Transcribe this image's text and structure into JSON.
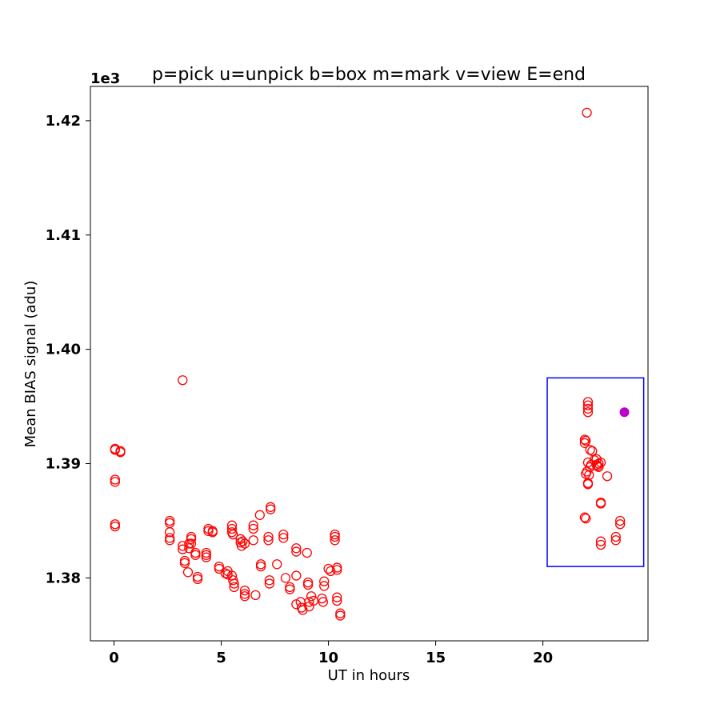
{
  "chart_data": {
    "type": "scatter",
    "title": "p=pick u=unpick b=box m=mark v=view E=end",
    "xlabel": "UT in hours",
    "ylabel": "Mean BIAS signal (adu)",
    "y_offset_label": "1e3",
    "xlim": [
      -1.1,
      24.9
    ],
    "ylim": [
      1.3745,
      1.423
    ],
    "xticks": [
      0,
      5,
      10,
      15,
      20
    ],
    "xtick_labels": [
      "0",
      "5",
      "10",
      "15",
      "20"
    ],
    "yticks": [
      1.38,
      1.39,
      1.4,
      1.41,
      1.42
    ],
    "ytick_labels": [
      "1.38",
      "1.39",
      "1.40",
      "1.41",
      "1.42"
    ],
    "grid": false,
    "legend": "none",
    "colors": {
      "points": "#ff0000",
      "marked": "#bb00cc",
      "box": "#0000ff"
    },
    "series": [
      {
        "marker": "open-circle",
        "color": "#ff0000",
        "points": [
          [
            0.05,
            1.3913
          ],
          [
            0.05,
            1.3912
          ],
          [
            0.3,
            1.3911
          ],
          [
            0.3,
            1.391
          ],
          [
            0.05,
            1.3886
          ],
          [
            0.05,
            1.3884
          ],
          [
            0.05,
            1.3847
          ],
          [
            0.05,
            1.3845
          ],
          [
            3.2,
            1.3973
          ],
          [
            2.6,
            1.385
          ],
          [
            2.6,
            1.3848
          ],
          [
            2.6,
            1.384
          ],
          [
            2.6,
            1.3835
          ],
          [
            2.6,
            1.3833
          ],
          [
            3.2,
            1.3828
          ],
          [
            3.2,
            1.3825
          ],
          [
            3.3,
            1.3815
          ],
          [
            3.3,
            1.3813
          ],
          [
            3.45,
            1.3805
          ],
          [
            3.5,
            1.383
          ],
          [
            3.5,
            1.3826
          ],
          [
            3.6,
            1.3836
          ],
          [
            3.6,
            1.3834
          ],
          [
            3.6,
            1.383
          ],
          [
            3.8,
            1.3822
          ],
          [
            3.8,
            1.382
          ],
          [
            3.9,
            1.3801
          ],
          [
            3.9,
            1.3799
          ],
          [
            4.3,
            1.3822
          ],
          [
            4.3,
            1.382
          ],
          [
            4.3,
            1.3818
          ],
          [
            4.4,
            1.3843
          ],
          [
            4.4,
            1.3841
          ],
          [
            4.6,
            1.3841
          ],
          [
            4.6,
            1.384
          ],
          [
            4.9,
            1.381
          ],
          [
            4.9,
            1.3808
          ],
          [
            5.2,
            1.3804
          ],
          [
            5.3,
            1.3806
          ],
          [
            5.3,
            1.3803
          ],
          [
            5.5,
            1.3802
          ],
          [
            5.55,
            1.3798
          ],
          [
            5.6,
            1.3795
          ],
          [
            5.6,
            1.3792
          ],
          [
            5.5,
            1.3846
          ],
          [
            5.5,
            1.3843
          ],
          [
            5.5,
            1.384
          ],
          [
            5.55,
            1.3838
          ],
          [
            5.9,
            1.3834
          ],
          [
            5.9,
            1.3831
          ],
          [
            5.95,
            1.3828
          ],
          [
            6.0,
            1.3832
          ],
          [
            6.1,
            1.383
          ],
          [
            6.1,
            1.3789
          ],
          [
            6.1,
            1.3786
          ],
          [
            6.1,
            1.3784
          ],
          [
            6.5,
            1.3846
          ],
          [
            6.5,
            1.3843
          ],
          [
            6.5,
            1.3833
          ],
          [
            6.6,
            1.3785
          ],
          [
            6.8,
            1.3855
          ],
          [
            6.85,
            1.3812
          ],
          [
            6.85,
            1.381
          ],
          [
            7.2,
            1.3836
          ],
          [
            7.2,
            1.3833
          ],
          [
            7.25,
            1.3798
          ],
          [
            7.25,
            1.3795
          ],
          [
            7.3,
            1.3862
          ],
          [
            7.3,
            1.386
          ],
          [
            7.6,
            1.3812
          ],
          [
            7.9,
            1.3838
          ],
          [
            7.9,
            1.3835
          ],
          [
            8.0,
            1.38
          ],
          [
            8.2,
            1.3792
          ],
          [
            8.2,
            1.379
          ],
          [
            8.5,
            1.3826
          ],
          [
            8.5,
            1.3823
          ],
          [
            8.5,
            1.3802
          ],
          [
            8.5,
            1.3777
          ],
          [
            8.7,
            1.3779
          ],
          [
            8.75,
            1.3774
          ],
          [
            8.8,
            1.3772
          ],
          [
            9.0,
            1.3822
          ],
          [
            9.05,
            1.3796
          ],
          [
            9.05,
            1.3794
          ],
          [
            9.1,
            1.3779
          ],
          [
            9.1,
            1.3775
          ],
          [
            9.2,
            1.3784
          ],
          [
            9.3,
            1.378
          ],
          [
            9.7,
            1.3782
          ],
          [
            9.75,
            1.3779
          ],
          [
            9.8,
            1.3797
          ],
          [
            9.8,
            1.3793
          ],
          [
            10.0,
            1.3808
          ],
          [
            10.1,
            1.3806
          ],
          [
            10.3,
            1.3838
          ],
          [
            10.3,
            1.3836
          ],
          [
            10.3,
            1.3833
          ],
          [
            10.4,
            1.3809
          ],
          [
            10.4,
            1.3807
          ],
          [
            10.4,
            1.3783
          ],
          [
            10.4,
            1.378
          ],
          [
            10.55,
            1.3769
          ],
          [
            10.55,
            1.3767
          ],
          [
            22.05,
            1.4207
          ],
          [
            22.1,
            1.3954
          ],
          [
            22.1,
            1.3951
          ],
          [
            22.1,
            1.3948
          ],
          [
            22.1,
            1.3945
          ],
          [
            21.95,
            1.3921
          ],
          [
            21.95,
            1.3918
          ],
          [
            22.0,
            1.392
          ],
          [
            22.2,
            1.3912
          ],
          [
            22.3,
            1.3911
          ],
          [
            22.1,
            1.3901
          ],
          [
            22.2,
            1.3897
          ],
          [
            22.25,
            1.3899
          ],
          [
            22.05,
            1.3893
          ],
          [
            22.15,
            1.389
          ],
          [
            22.0,
            1.3891
          ],
          [
            22.4,
            1.3903
          ],
          [
            22.5,
            1.3899
          ],
          [
            22.6,
            1.3897
          ],
          [
            22.7,
            1.3901
          ],
          [
            22.5,
            1.3904
          ],
          [
            22.6,
            1.39
          ],
          [
            22.55,
            1.3898
          ],
          [
            22.1,
            1.3882
          ],
          [
            22.1,
            1.3883
          ],
          [
            23.0,
            1.3889
          ],
          [
            22.7,
            1.3866
          ],
          [
            22.7,
            1.3865
          ],
          [
            21.95,
            1.3853
          ],
          [
            22.0,
            1.3852
          ],
          [
            22.7,
            1.3832
          ],
          [
            22.7,
            1.3829
          ],
          [
            23.4,
            1.3836
          ],
          [
            23.4,
            1.3833
          ],
          [
            23.6,
            1.385
          ],
          [
            23.6,
            1.3847
          ]
        ]
      },
      {
        "marker": "filled-circle",
        "color": "#bb00cc",
        "points": [
          [
            23.8,
            1.3945
          ]
        ]
      }
    ],
    "box_region": {
      "x": [
        20.2,
        24.7
      ],
      "y": [
        1.381,
        1.3975
      ],
      "color": "#0000ff"
    }
  }
}
